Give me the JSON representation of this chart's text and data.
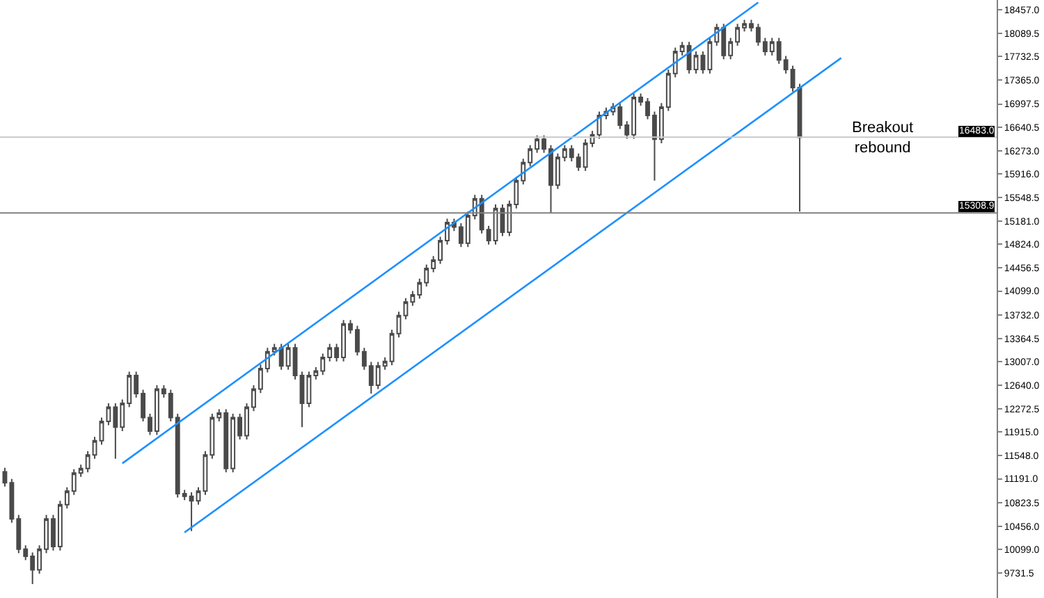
{
  "chart_data": {
    "type": "candlestick",
    "categories": [
      null,
      null,
      null,
      null,
      null,
      null,
      null,
      null,
      null,
      null,
      null,
      null,
      null,
      null,
      null,
      null,
      null,
      null,
      null,
      null,
      null,
      null,
      null,
      null,
      null,
      null,
      null,
      null,
      null,
      null,
      null,
      null,
      null,
      null,
      null,
      null,
      null,
      null,
      null,
      null,
      null,
      null,
      null,
      null,
      null,
      null,
      null,
      null,
      null,
      null,
      null,
      null,
      null,
      null,
      null,
      null,
      null,
      null,
      null,
      null,
      null,
      null,
      null,
      null,
      null,
      null,
      null,
      null,
      null,
      null,
      null,
      null,
      null,
      null,
      null,
      null,
      null,
      null,
      null,
      null,
      null,
      null,
      null,
      null,
      null,
      null,
      null,
      null,
      null,
      null,
      null,
      null,
      null,
      null,
      null,
      null,
      null,
      null,
      null,
      null,
      null,
      null,
      null,
      null,
      null,
      null,
      null,
      null,
      null,
      null,
      null,
      null,
      null,
      null,
      null,
      null,
      null,
      null,
      null,
      null,
      null,
      null,
      null,
      null,
      null,
      null,
      null,
      null,
      null,
      null,
      null,
      null,
      null,
      null,
      null,
      null,
      null,
      null,
      null,
      null,
      null,
      null,
      null,
      null
    ],
    "color": "#4a4a4a",
    "ohlc": [
      [
        11300,
        11360,
        11070,
        11130
      ],
      [
        11130,
        11190,
        10510,
        10570
      ],
      [
        10570,
        10630,
        10040,
        10100
      ],
      [
        10100,
        10160,
        9930,
        9990
      ],
      [
        9990,
        10050,
        9560,
        9780
      ],
      [
        9780,
        10160,
        9720,
        10100
      ],
      [
        10100,
        10630,
        10040,
        10570
      ],
      [
        10570,
        10630,
        10080,
        10140
      ],
      [
        10140,
        10850,
        10080,
        10790
      ],
      [
        10790,
        11060,
        10730,
        11000
      ],
      [
        11000,
        11340,
        10940,
        11280
      ],
      [
        11280,
        11410,
        11220,
        11350
      ],
      [
        11350,
        11620,
        11290,
        11560
      ],
      [
        11560,
        11840,
        11500,
        11780
      ],
      [
        11780,
        12140,
        11720,
        12080
      ],
      [
        12080,
        12360,
        12020,
        12300
      ],
      [
        12300,
        12360,
        11500,
        11990
      ],
      [
        11990,
        12420,
        11930,
        12360
      ],
      [
        12360,
        12850,
        12300,
        12790
      ],
      [
        12790,
        12850,
        12450,
        12510
      ],
      [
        12510,
        12570,
        12080,
        12140
      ],
      [
        12140,
        12200,
        11870,
        11930
      ],
      [
        11930,
        12640,
        11870,
        12580
      ],
      [
        12580,
        12640,
        12450,
        12510
      ],
      [
        12510,
        12570,
        12080,
        12140
      ],
      [
        12140,
        12200,
        10900,
        10960
      ],
      [
        10960,
        11020,
        10860,
        10920
      ],
      [
        10920,
        10980,
        10380,
        10850
      ],
      [
        10850,
        11060,
        10790,
        11000
      ],
      [
        11000,
        11620,
        10940,
        11560
      ],
      [
        11560,
        12200,
        11500,
        12140
      ],
      [
        12140,
        12270,
        12080,
        12210
      ],
      [
        12210,
        12270,
        11290,
        11350
      ],
      [
        11350,
        12200,
        11290,
        12140
      ],
      [
        12140,
        12200,
        11800,
        11860
      ],
      [
        11860,
        12360,
        11800,
        12300
      ],
      [
        12300,
        12640,
        12240,
        12580
      ],
      [
        12580,
        12960,
        12520,
        12900
      ],
      [
        12900,
        13220,
        12840,
        13160
      ],
      [
        13160,
        13280,
        13100,
        13220
      ],
      [
        13220,
        13280,
        12880,
        12940
      ],
      [
        12940,
        13280,
        12880,
        13220
      ],
      [
        13220,
        13280,
        12730,
        12790
      ],
      [
        12790,
        12850,
        11990,
        12360
      ],
      [
        12360,
        12850,
        12300,
        12790
      ],
      [
        12790,
        12920,
        12730,
        12860
      ],
      [
        12860,
        13130,
        12800,
        13070
      ],
      [
        13070,
        13280,
        13010,
        13220
      ],
      [
        13220,
        13280,
        13010,
        13070
      ],
      [
        13070,
        13650,
        13010,
        13590
      ],
      [
        13590,
        13650,
        13440,
        13500
      ],
      [
        13500,
        13560,
        13100,
        13160
      ],
      [
        13160,
        13220,
        12880,
        12940
      ],
      [
        12940,
        13000,
        12510,
        12640
      ],
      [
        12640,
        13000,
        12580,
        12940
      ],
      [
        12940,
        13070,
        12880,
        13010
      ],
      [
        13010,
        13500,
        12950,
        13440
      ],
      [
        13440,
        13780,
        13380,
        13720
      ],
      [
        13720,
        13990,
        13660,
        13930
      ],
      [
        13930,
        14100,
        13870,
        14040
      ],
      [
        14040,
        14290,
        13980,
        14230
      ],
      [
        14230,
        14510,
        14170,
        14450
      ],
      [
        14450,
        14640,
        14390,
        14580
      ],
      [
        14580,
        14940,
        14520,
        14880
      ],
      [
        14880,
        15220,
        14820,
        15160
      ],
      [
        15160,
        15220,
        15030,
        15090
      ],
      [
        15090,
        15150,
        14780,
        14840
      ],
      [
        14840,
        15330,
        14780,
        15270
      ],
      [
        15270,
        15590,
        15210,
        15530
      ],
      [
        15530,
        15590,
        14990,
        15050
      ],
      [
        15050,
        15110,
        14820,
        14880
      ],
      [
        14880,
        15440,
        14820,
        15380
      ],
      [
        15380,
        15440,
        14950,
        15010
      ],
      [
        15010,
        15500,
        14950,
        15440
      ],
      [
        15440,
        15870,
        15380,
        15810
      ],
      [
        15810,
        16150,
        15750,
        16090
      ],
      [
        16090,
        16360,
        16030,
        16300
      ],
      [
        16300,
        16510,
        16240,
        16450
      ],
      [
        16450,
        16510,
        16240,
        16300
      ],
      [
        16300,
        16360,
        15310,
        15740
      ],
      [
        15740,
        16230,
        15680,
        16170
      ],
      [
        16170,
        16360,
        16110,
        16300
      ],
      [
        16300,
        16360,
        16110,
        16170
      ],
      [
        16170,
        16230,
        15960,
        16020
      ],
      [
        16020,
        16450,
        15960,
        16390
      ],
      [
        16390,
        16580,
        16330,
        16520
      ],
      [
        16520,
        16880,
        16460,
        16820
      ],
      [
        16820,
        16940,
        16760,
        16880
      ],
      [
        16880,
        17010,
        16820,
        16950
      ],
      [
        16950,
        17010,
        16610,
        16670
      ],
      [
        16670,
        16730,
        16460,
        16520
      ],
      [
        16520,
        17160,
        16460,
        17100
      ],
      [
        17100,
        17160,
        16970,
        17030
      ],
      [
        17030,
        17090,
        16760,
        16820
      ],
      [
        16820,
        16880,
        15810,
        16450
      ],
      [
        16450,
        17010,
        16390,
        16950
      ],
      [
        16950,
        17530,
        16890,
        17470
      ],
      [
        17470,
        17870,
        17410,
        17810
      ],
      [
        17810,
        17960,
        17750,
        17900
      ],
      [
        17900,
        17960,
        17470,
        17530
      ],
      [
        17530,
        17810,
        17470,
        17750
      ],
      [
        17750,
        17810,
        17470,
        17530
      ],
      [
        17530,
        18020,
        17470,
        17960
      ],
      [
        17960,
        18240,
        17900,
        18180
      ],
      [
        18180,
        18240,
        17690,
        17750
      ],
      [
        17750,
        18020,
        17690,
        17960
      ],
      [
        17960,
        18240,
        17900,
        18180
      ],
      [
        18180,
        18300,
        18120,
        18240
      ],
      [
        18240,
        18300,
        18120,
        18180
      ],
      [
        18180,
        18240,
        17900,
        17960
      ],
      [
        17960,
        18020,
        17750,
        17810
      ],
      [
        17810,
        18020,
        17750,
        17960
      ],
      [
        17960,
        18020,
        17620,
        17680
      ],
      [
        17680,
        17740,
        17470,
        17530
      ],
      [
        17530,
        17590,
        17190,
        17250
      ],
      [
        17250,
        17310,
        15330,
        16480
      ],
      null,
      null,
      null,
      null,
      null,
      null,
      null,
      null,
      null,
      null,
      null,
      null,
      null,
      null,
      null,
      null,
      null,
      null,
      null,
      null,
      null,
      null,
      null,
      null,
      null,
      null,
      null,
      null
    ],
    "series": [
      {
        "type": "line",
        "color": "#1e90ff",
        "values": [
          null,
          null,
          null,
          null,
          null,
          null,
          null,
          null,
          null,
          null,
          null,
          null,
          null,
          null,
          null,
          null,
          null,
          11430,
          null,
          null,
          null,
          null,
          null,
          null,
          null,
          null,
          null,
          null,
          null,
          null,
          null,
          null,
          null,
          null,
          null,
          null,
          null,
          null,
          null,
          null,
          null,
          null,
          null,
          null,
          null,
          null,
          null,
          null,
          null,
          null,
          null,
          null,
          null,
          null,
          null,
          null,
          null,
          null,
          null,
          null,
          null,
          null,
          null,
          null,
          null,
          null,
          null,
          null,
          null,
          null,
          null,
          null,
          null,
          null,
          null,
          null,
          null,
          null,
          null,
          null,
          null,
          null,
          null,
          null,
          null,
          null,
          null,
          null,
          null,
          null,
          null,
          null,
          null,
          null,
          null,
          null,
          null,
          null,
          null,
          null,
          null,
          null,
          null,
          null,
          null,
          null,
          null,
          null,
          null,
          18570,
          null,
          null,
          null,
          null,
          null,
          null,
          null,
          null,
          null,
          null,
          null,
          null,
          null,
          null,
          null,
          null,
          null,
          null,
          null,
          null,
          null,
          null,
          null,
          null,
          null,
          null,
          null,
          null,
          null,
          null,
          null,
          null,
          null,
          null
        ]
      },
      {
        "type": "line",
        "color": "#1e90ff",
        "values": [
          null,
          null,
          null,
          null,
          null,
          null,
          null,
          null,
          null,
          null,
          null,
          null,
          null,
          null,
          null,
          null,
          null,
          null,
          null,
          null,
          null,
          null,
          null,
          null,
          null,
          null,
          10360,
          null,
          null,
          null,
          null,
          null,
          null,
          null,
          null,
          null,
          null,
          null,
          null,
          null,
          null,
          null,
          null,
          null,
          null,
          null,
          null,
          null,
          null,
          null,
          null,
          null,
          null,
          null,
          null,
          null,
          null,
          null,
          null,
          null,
          null,
          null,
          null,
          null,
          null,
          null,
          null,
          null,
          null,
          null,
          null,
          null,
          null,
          null,
          null,
          null,
          null,
          null,
          null,
          null,
          null,
          null,
          null,
          null,
          null,
          null,
          null,
          null,
          null,
          null,
          null,
          null,
          null,
          null,
          null,
          null,
          null,
          null,
          null,
          null,
          null,
          null,
          null,
          null,
          null,
          null,
          null,
          null,
          null,
          null,
          null,
          null,
          null,
          null,
          null,
          null,
          null,
          null,
          null,
          null,
          null,
          17710,
          null,
          null,
          null,
          null,
          null,
          null,
          null,
          null,
          null,
          null,
          null,
          null,
          null,
          null,
          null,
          null,
          null,
          null,
          null,
          null,
          null,
          null
        ]
      }
    ],
    "ylim": [
      9344,
      18608
    ],
    "yticks": [
      {
        "value": 18457,
        "label": "18457.0"
      },
      {
        "value": 18089.5,
        "label": "18089.5"
      },
      {
        "value": 17732.5,
        "label": "17732.5"
      },
      {
        "value": 17365,
        "label": "17365.0"
      },
      {
        "value": 16997.5,
        "label": "16997.5"
      },
      {
        "value": 16640.5,
        "label": "16640.5"
      },
      {
        "value": 16273,
        "label": "16273.0"
      },
      {
        "value": 15916,
        "label": "15916.0"
      },
      {
        "value": 15548.5,
        "label": "15548.5"
      },
      {
        "value": 15181,
        "label": "15181.0"
      },
      {
        "value": 14824,
        "label": "14824.0"
      },
      {
        "value": 14456.5,
        "label": "14456.5"
      },
      {
        "value": 14099,
        "label": "14099.0"
      },
      {
        "value": 13732,
        "label": "13732.0"
      },
      {
        "value": 13364.5,
        "label": "13364.5"
      },
      {
        "value": 13007,
        "label": "13007.0"
      },
      {
        "value": 12640,
        "label": "12640.0"
      },
      {
        "value": 12272.5,
        "label": "12272.5"
      },
      {
        "value": 11915,
        "label": "11915.0"
      },
      {
        "value": 11548,
        "label": "11548.0"
      },
      {
        "value": 11191,
        "label": "11191.0"
      },
      {
        "value": 10823.5,
        "label": "10823.5"
      },
      {
        "value": 10456,
        "label": "10456.0"
      },
      {
        "value": 10099,
        "label": "10099.0"
      },
      {
        "value": 9731.5,
        "label": "9731.5"
      }
    ],
    "ref_lines": [
      {
        "axis": "y",
        "value": 16483.0,
        "label": "16483.0",
        "color": "#c8c8c8"
      },
      {
        "axis": "y",
        "value": 15308.9,
        "label": "15308.9",
        "color": "#808080"
      }
    ],
    "annotations": [
      "Breakout\nrebound"
    ],
    "tick_labels": "y"
  }
}
